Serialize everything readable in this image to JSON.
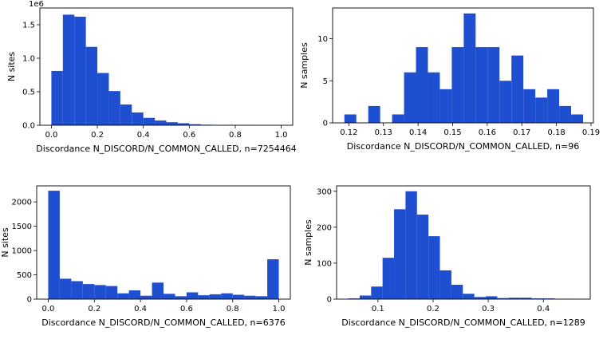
{
  "chart_data": [
    {
      "type": "bar",
      "id": "tl",
      "xlabel": "Discordance N_DISCORD/N_COMMON_CALLED, n=7254464",
      "ylabel": "N sites",
      "offset_text": "1e6",
      "xlim": [
        -0.05,
        1.05
      ],
      "ylim": [
        0,
        1.75
      ],
      "xticks": [
        0.0,
        0.2,
        0.4,
        0.6,
        0.8,
        1.0
      ],
      "xtick_labels": [
        "0.0",
        "0.2",
        "0.4",
        "0.6",
        "0.8",
        "1.0"
      ],
      "yticks": [
        0.0,
        0.5,
        1.0,
        1.5
      ],
      "ytick_labels": [
        "0.0",
        "0.5",
        "1.0",
        "1.5"
      ],
      "bin_start": 0.0,
      "bin_width": 0.05,
      "values": [
        0.81,
        1.65,
        1.62,
        1.17,
        0.78,
        0.51,
        0.31,
        0.19,
        0.11,
        0.07,
        0.045,
        0.03,
        0.015,
        0.008,
        0.004,
        0.002,
        0.001,
        0.001,
        0.0005,
        0.0005
      ]
    },
    {
      "type": "bar",
      "id": "tr",
      "xlabel": "Discordance N_DISCORD/N_COMMON_CALLED, n=96",
      "ylabel": "N samples",
      "offset_text": "",
      "xlim": [
        0.1153,
        0.1907
      ],
      "ylim": [
        0,
        13.65
      ],
      "xticks": [
        0.12,
        0.13,
        0.14,
        0.15,
        0.16,
        0.17,
        0.18,
        0.19
      ],
      "xtick_labels": [
        "0.12",
        "0.13",
        "0.14",
        "0.15",
        "0.16",
        "0.17",
        "0.18",
        "0.19"
      ],
      "yticks": [
        0,
        5,
        10
      ],
      "ytick_labels": [
        "0",
        "5",
        "10"
      ],
      "bin_start": 0.1187,
      "bin_width": 0.00345,
      "values": [
        1,
        0,
        2,
        0,
        1,
        6,
        9,
        6,
        4,
        9,
        13,
        9,
        9,
        5,
        8,
        4,
        3,
        4,
        2,
        1
      ]
    },
    {
      "type": "bar",
      "id": "bl",
      "xlabel": "Discordance N_DISCORD/N_COMMON_CALLED, n=6376",
      "ylabel": "N sites",
      "offset_text": "",
      "xlim": [
        -0.05,
        1.05
      ],
      "ylim": [
        0,
        2330
      ],
      "xticks": [
        0.0,
        0.2,
        0.4,
        0.6,
        0.8,
        1.0
      ],
      "xtick_labels": [
        "0.0",
        "0.2",
        "0.4",
        "0.6",
        "0.8",
        "1.0"
      ],
      "yticks": [
        0,
        500,
        1000,
        1500,
        2000
      ],
      "ytick_labels": [
        "0",
        "500",
        "1000",
        "1500",
        "2000"
      ],
      "bin_start": 0.0,
      "bin_width": 0.05,
      "values": [
        2230,
        420,
        370,
        310,
        290,
        270,
        120,
        180,
        70,
        340,
        110,
        60,
        140,
        80,
        100,
        120,
        90,
        70,
        60,
        820
      ]
    },
    {
      "type": "bar",
      "id": "br",
      "xlabel": "Discordance N_DISCORD/N_COMMON_CALLED, n=1289",
      "ylabel": "N samples",
      "offset_text": "",
      "xlim": [
        0.025,
        0.485
      ],
      "ylim": [
        0,
        315
      ],
      "xticks": [
        0.1,
        0.2,
        0.3,
        0.4
      ],
      "xtick_labels": [
        "0.1",
        "0.2",
        "0.3",
        "0.4"
      ],
      "yticks": [
        0,
        100,
        200,
        300
      ],
      "ytick_labels": [
        "0",
        "100",
        "200",
        "300"
      ],
      "bin_start": 0.046,
      "bin_width": 0.0208,
      "values": [
        2,
        10,
        35,
        115,
        250,
        300,
        235,
        175,
        80,
        40,
        15,
        6,
        8,
        3,
        4,
        4,
        2,
        2,
        1,
        1
      ]
    }
  ],
  "style": {
    "bar_color": "#1f4fd1",
    "axis_color": "#000000"
  }
}
